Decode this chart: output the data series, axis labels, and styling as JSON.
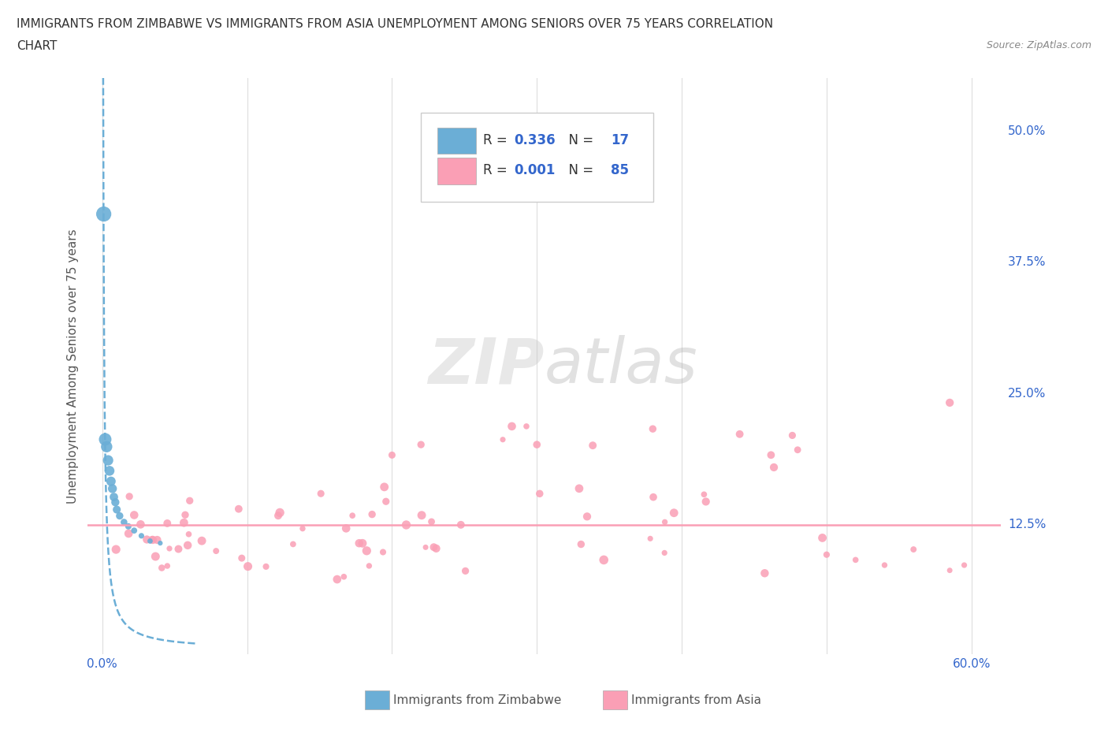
{
  "title_line1": "IMMIGRANTS FROM ZIMBABWE VS IMMIGRANTS FROM ASIA UNEMPLOYMENT AMONG SENIORS OVER 75 YEARS CORRELATION",
  "title_line2": "CHART",
  "source": "Source: ZipAtlas.com",
  "ylabel": "Unemployment Among Seniors over 75 years",
  "xlim": [
    -0.01,
    0.62
  ],
  "ylim": [
    0.0,
    0.55
  ],
  "xtick_positions": [
    0.0,
    0.1,
    0.2,
    0.3,
    0.4,
    0.5,
    0.6
  ],
  "xticklabels": [
    "0.0%",
    "",
    "",
    "",
    "",
    "",
    "60.0%"
  ],
  "yticks_right": [
    0.125,
    0.25,
    0.375,
    0.5
  ],
  "yticklabels_right": [
    "12.5%",
    "25.0%",
    "37.5%",
    "50.0%"
  ],
  "grid_color": "#dddddd",
  "background_color": "#ffffff",
  "zimbabwe_color": "#6baed6",
  "asia_color": "#fa9fb5",
  "zimbabwe_R": "0.336",
  "zimbabwe_N": "17",
  "asia_R": "0.001",
  "asia_N": "85",
  "legend_label_zimbabwe": "Immigrants from Zimbabwe",
  "legend_label_asia": "Immigrants from Asia",
  "watermark_zip": "ZIP",
  "watermark_atlas": "atlas",
  "blue_text_color": "#3366cc",
  "title_color": "#333333",
  "source_color": "#888888",
  "ylabel_color": "#555555",
  "tick_color": "#3366cc"
}
